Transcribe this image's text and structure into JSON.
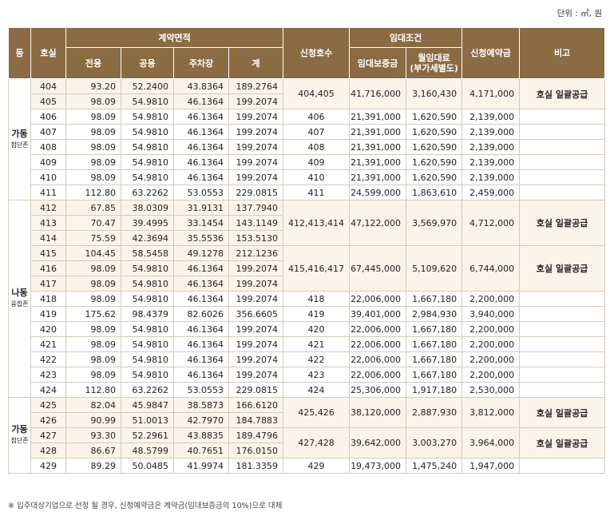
{
  "unit_label": "단위 : ㎡, 원",
  "headers": {
    "dong": "동",
    "room": "호실",
    "area_group": "계약면적",
    "exclusive": "전용",
    "common": "공용",
    "parking": "주차장",
    "total": "계",
    "applied_rooms": "신청호수",
    "lease_group": "임대조건",
    "deposit": "임대보증금",
    "monthly_rent": "월임대료\n(부가세별도)",
    "reservation": "신청예약금",
    "note": "비고"
  },
  "dongs": [
    {
      "name": "가동",
      "sub": "첨단존"
    },
    {
      "name": "나동",
      "sub": "융합존"
    },
    {
      "name": "가동",
      "sub": "첨단존"
    }
  ],
  "rows": [
    {
      "room": "404",
      "exclusive": "93.20",
      "common": "52.2400",
      "parking": "43.8364",
      "total": "189.2764",
      "shade": true
    },
    {
      "room": "405",
      "exclusive": "98.09",
      "common": "54.9810",
      "parking": "46.1364",
      "total": "199.2074",
      "shade": true
    },
    {
      "room": "406",
      "exclusive": "98.09",
      "common": "54.9810",
      "parking": "46.1364",
      "total": "199.2074"
    },
    {
      "room": "407",
      "exclusive": "98.09",
      "common": "54.9810",
      "parking": "46.1364",
      "total": "199.2074"
    },
    {
      "room": "408",
      "exclusive": "98.09",
      "common": "54.9810",
      "parking": "46.1364",
      "total": "199.2074"
    },
    {
      "room": "409",
      "exclusive": "98.09",
      "common": "54.9810",
      "parking": "46.1364",
      "total": "199.2074"
    },
    {
      "room": "410",
      "exclusive": "98.09",
      "common": "54.9810",
      "parking": "46.1364",
      "total": "199.2074"
    },
    {
      "room": "411",
      "exclusive": "112.80",
      "common": "63.2262",
      "parking": "53.0553",
      "total": "229.0815"
    },
    {
      "room": "412",
      "exclusive": "67.85",
      "common": "38.0309",
      "parking": "31.9131",
      "total": "137.7940",
      "shade": true
    },
    {
      "room": "413",
      "exclusive": "70.47",
      "common": "39.4995",
      "parking": "33.1454",
      "total": "143.1149",
      "shade": true
    },
    {
      "room": "414",
      "exclusive": "75.59",
      "common": "42.3694",
      "parking": "35.5536",
      "total": "153.5130",
      "shade": true
    },
    {
      "room": "415",
      "exclusive": "104.45",
      "common": "58.5458",
      "parking": "49.1278",
      "total": "212.1236",
      "shade": true
    },
    {
      "room": "416",
      "exclusive": "98.09",
      "common": "54.9810",
      "parking": "46.1364",
      "total": "199.2074",
      "shade": true
    },
    {
      "room": "417",
      "exclusive": "98.09",
      "common": "54.9810",
      "parking": "46.1364",
      "total": "199.2074",
      "shade": true
    },
    {
      "room": "418",
      "exclusive": "98.09",
      "common": "54.9810",
      "parking": "46.1364",
      "total": "199.2074"
    },
    {
      "room": "419",
      "exclusive": "175.62",
      "common": "98.4379",
      "parking": "82.6026",
      "total": "356.6605"
    },
    {
      "room": "420",
      "exclusive": "98.09",
      "common": "54.9810",
      "parking": "46.1364",
      "total": "199.2074"
    },
    {
      "room": "421",
      "exclusive": "98.09",
      "common": "54.9810",
      "parking": "46.1364",
      "total": "199.2074"
    },
    {
      "room": "422",
      "exclusive": "98.09",
      "common": "54.9810",
      "parking": "46.1364",
      "total": "199.2074"
    },
    {
      "room": "423",
      "exclusive": "98.09",
      "common": "54.9810",
      "parking": "46.1364",
      "total": "199.2074"
    },
    {
      "room": "424",
      "exclusive": "112.80",
      "common": "63.2262",
      "parking": "53.0553",
      "total": "229.0815"
    },
    {
      "room": "425",
      "exclusive": "82.04",
      "common": "45.9847",
      "parking": "38.5873",
      "total": "166.6120",
      "shade": true
    },
    {
      "room": "426",
      "exclusive": "90.99",
      "common": "51.0013",
      "parking": "42.7970",
      "total": "184.7883",
      "shade": true
    },
    {
      "room": "427",
      "exclusive": "93.30",
      "common": "52.2961",
      "parking": "43.8835",
      "total": "189.4796",
      "shade": true
    },
    {
      "room": "428",
      "exclusive": "86.67",
      "common": "48.5799",
      "parking": "40.7651",
      "total": "176.0150",
      "shade": true
    },
    {
      "room": "429",
      "exclusive": "89.29",
      "common": "50.0485",
      "parking": "41.9974",
      "total": "181.3359"
    }
  ],
  "conditions": [
    {
      "applied": "404,405",
      "deposit": "41,716,000",
      "rent": "3,160,430",
      "reservation": "4,171,000",
      "note": "호실 일괄공급"
    },
    {
      "applied": "406",
      "deposit": "21,391,000",
      "rent": "1,620,590",
      "reservation": "2,139,000",
      "note": ""
    },
    {
      "applied": "407",
      "deposit": "21,391,000",
      "rent": "1,620,590",
      "reservation": "2,139,000",
      "note": ""
    },
    {
      "applied": "408",
      "deposit": "21,391,000",
      "rent": "1,620,590",
      "reservation": "2,139,000",
      "note": ""
    },
    {
      "applied": "409",
      "deposit": "21,391,000",
      "rent": "1,620,590",
      "reservation": "2,139,000",
      "note": ""
    },
    {
      "applied": "410",
      "deposit": "21,391,000",
      "rent": "1,620,590",
      "reservation": "2,139,000",
      "note": ""
    },
    {
      "applied": "411",
      "deposit": "24,599,000",
      "rent": "1,863,610",
      "reservation": "2,459,000",
      "note": ""
    },
    {
      "applied": "412,413,414",
      "deposit": "47,122,000",
      "rent": "3,569,970",
      "reservation": "4,712,000",
      "note": "호실 일괄공급"
    },
    {
      "applied": "415,416,417",
      "deposit": "67,445,000",
      "rent": "5,109,620",
      "reservation": "6,744,000",
      "note": "호실 일괄공급"
    },
    {
      "applied": "418",
      "deposit": "22,006,000",
      "rent": "1,667,180",
      "reservation": "2,200,000",
      "note": ""
    },
    {
      "applied": "419",
      "deposit": "39,401,000",
      "rent": "2,984,930",
      "reservation": "3,940,000",
      "note": ""
    },
    {
      "applied": "420",
      "deposit": "22,006,000",
      "rent": "1,667,180",
      "reservation": "2,200,000",
      "note": ""
    },
    {
      "applied": "421",
      "deposit": "22,006,000",
      "rent": "1,667,180",
      "reservation": "2,200,000",
      "note": ""
    },
    {
      "applied": "422",
      "deposit": "22,006,000",
      "rent": "1,667,180",
      "reservation": "2,200,000",
      "note": ""
    },
    {
      "applied": "423",
      "deposit": "22,006,000",
      "rent": "1,667,180",
      "reservation": "2,200,000",
      "note": ""
    },
    {
      "applied": "424",
      "deposit": "25,306,000",
      "rent": "1,917,180",
      "reservation": "2,530,000",
      "note": ""
    },
    {
      "applied": "425,426",
      "deposit": "38,120,000",
      "rent": "2,887,930",
      "reservation": "3,812,000",
      "note": "호실 일괄공급"
    },
    {
      "applied": "427,428",
      "deposit": "39,642,000",
      "rent": "3,003,270",
      "reservation": "3,964,000",
      "note": "호실 일괄공급"
    },
    {
      "applied": "429",
      "deposit": "19,473,000",
      "rent": "1,475,240",
      "reservation": "1,947,000",
      "note": ""
    }
  ],
  "footnote": "※ 입주대상기업으로 선정 될 경우, 신청예약금은 계약금(임대보증금의 10%)으로 대체"
}
